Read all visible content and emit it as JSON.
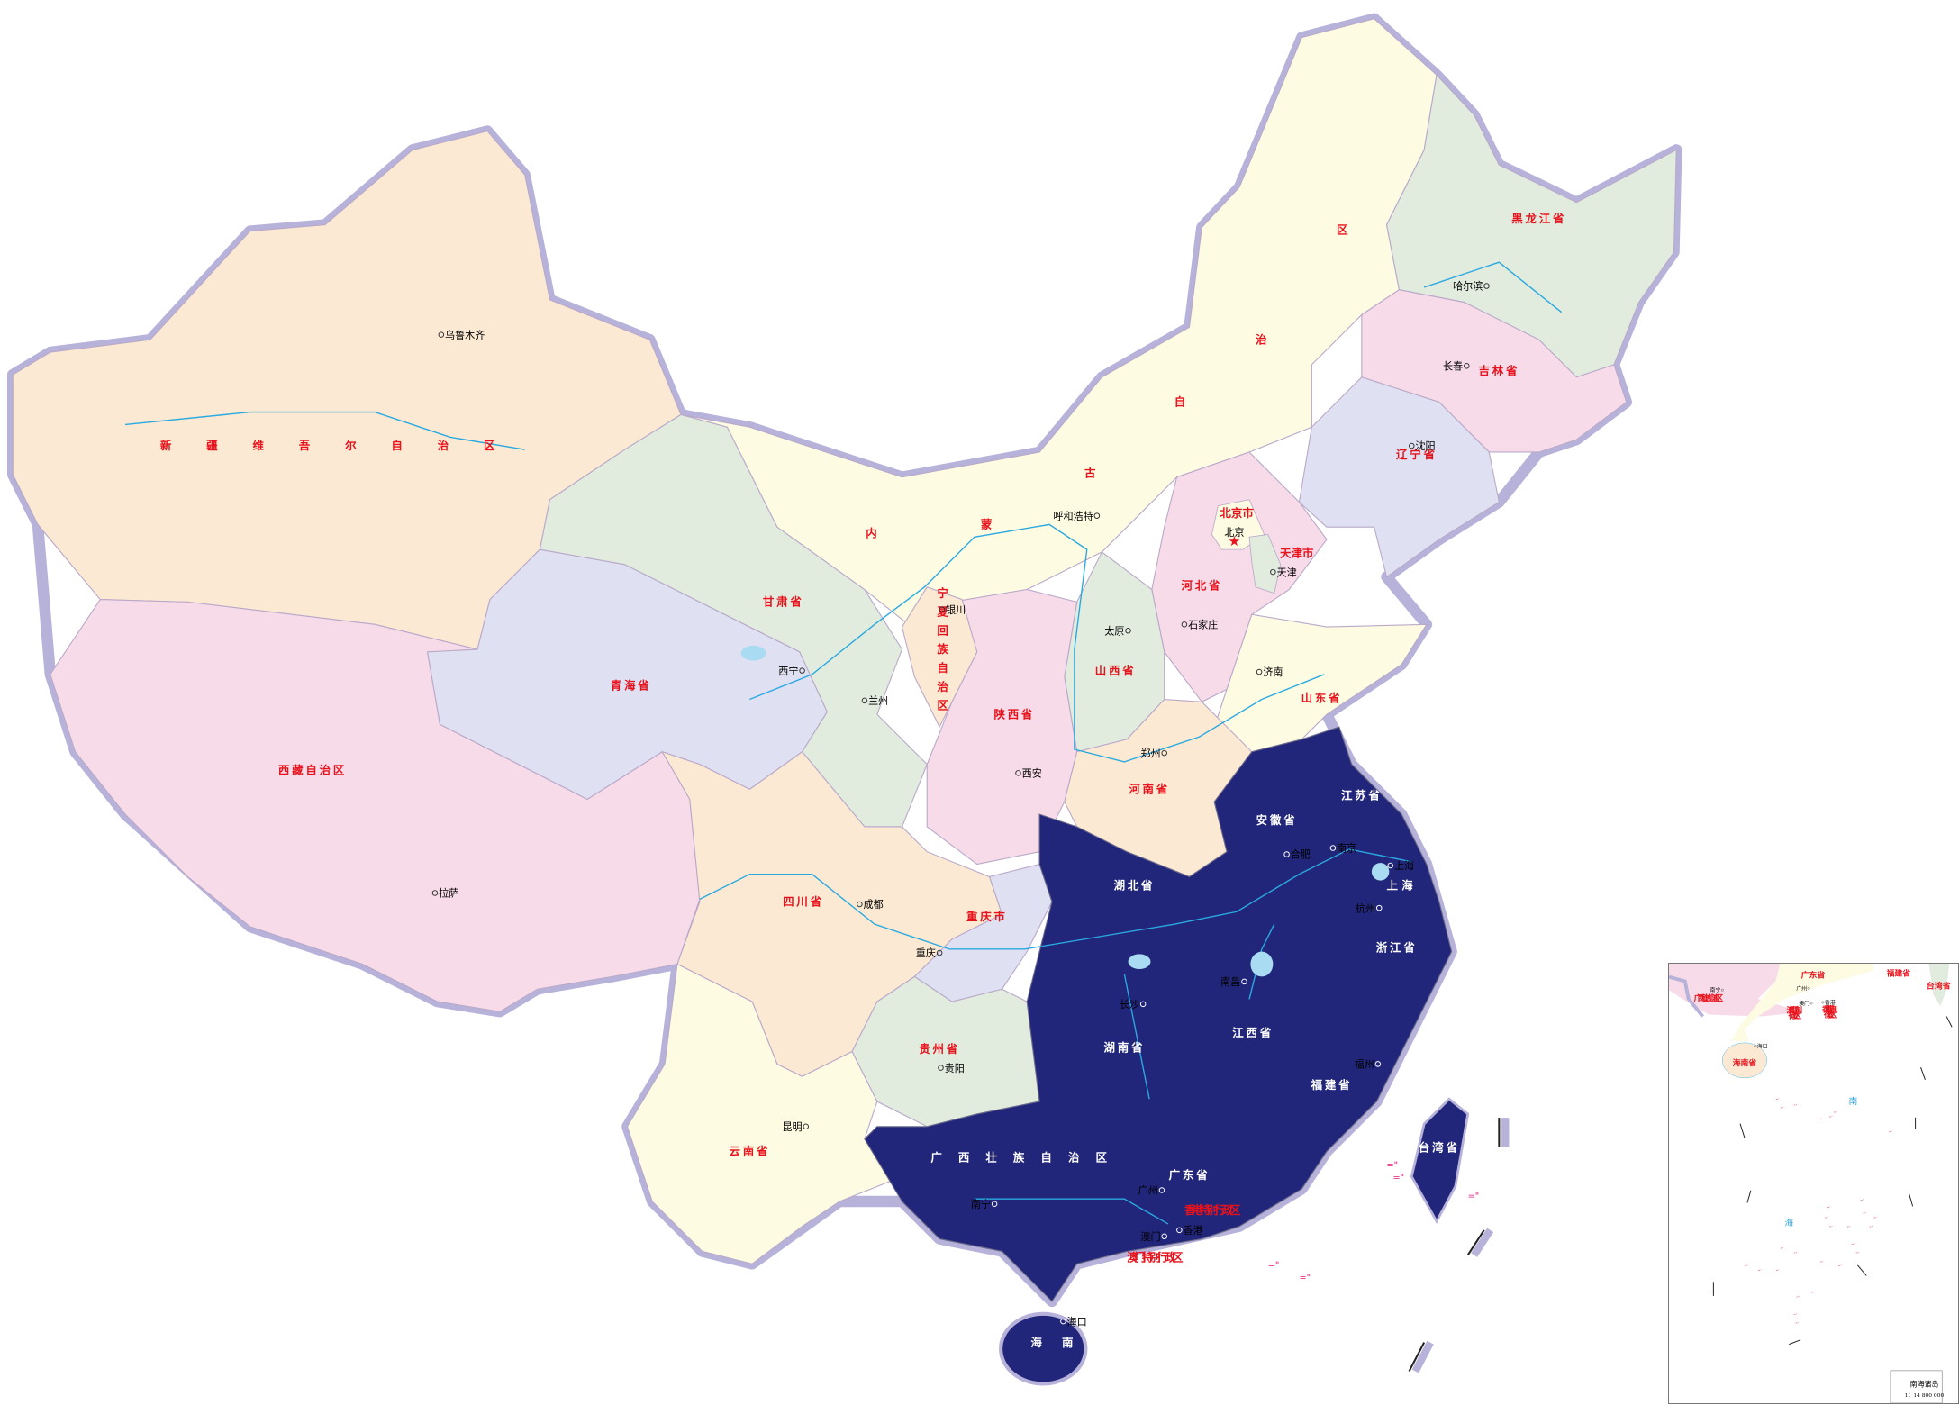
{
  "colors": {
    "xinjiang": "#fbe9d3",
    "tibet": "#f8dbe8",
    "qinghai": "#dfe0f2",
    "gansu": "#e1ecdf",
    "inner_mongolia": "#fefbe3",
    "heilongjiang": "#e1ecdf",
    "jilin": "#f8dbe8",
    "liaoning": "#dfe0f2",
    "hebei": "#f8dbe8",
    "shanxi": "#e1ecdf",
    "shaanxi": "#f8dbe8",
    "ningxia": "#fbe9d3",
    "shandong": "#fefbe3",
    "henan": "#fbe9d3",
    "sichuan": "#fbe9d3",
    "chongqing": "#dfe0f2",
    "guizhou": "#e1ecdf",
    "yunnan": "#fefbe3",
    "highlighted_region": "#22267a",
    "border_glow": "#b7b2da",
    "river": "#2aa9e0",
    "province_label": "#e8121c",
    "island_marks": "#e0167a"
  },
  "province_labels": [
    "新疆维吾尔自治区",
    "西藏自治区",
    "青海省",
    "甘肃省",
    "内蒙古自治区",
    "黑龙江省",
    "吉林省",
    "辽宁省",
    "北京市",
    "天津市",
    "河北省",
    "山西省",
    "陕西省",
    "宁夏回族自治区",
    "山东省",
    "河南省",
    "江苏省",
    "安徽省",
    "上海",
    "湖北省",
    "浙江省",
    "江西省",
    "湖南省",
    "福建省",
    "台湾省",
    "广东省",
    "广西壮族自治区",
    "海南",
    "四川省",
    "重庆市",
    "贵州省",
    "云南省",
    "香港特别行政区",
    "澳门特别行政区"
  ],
  "cities": [
    "乌鲁木齐",
    "呼和浩特",
    "哈尔滨",
    "长春",
    "沈阳",
    "北京",
    "天津",
    "石家庄",
    "太原",
    "济南",
    "郑州",
    "西安",
    "银川",
    "兰州",
    "西宁",
    "拉萨",
    "成都",
    "重庆",
    "贵阳",
    "昆明",
    "南宁",
    "广州",
    "长沙",
    "南昌",
    "福州",
    "杭州",
    "南京",
    "合肥",
    "上海",
    "海口",
    "澳门",
    "香港"
  ],
  "inset": {
    "province_labels": [
      "广西壮族自治区",
      "广东省",
      "福建省",
      "台湾省",
      "海南省",
      "澳门特别行政区",
      "香港特别行政区"
    ],
    "cities": [
      "南宁",
      "广州",
      "澳门",
      "香港",
      "海口"
    ],
    "sea_labels": [
      "南",
      "海"
    ],
    "title": "南海诸岛",
    "scale": "1：14 800 000"
  }
}
